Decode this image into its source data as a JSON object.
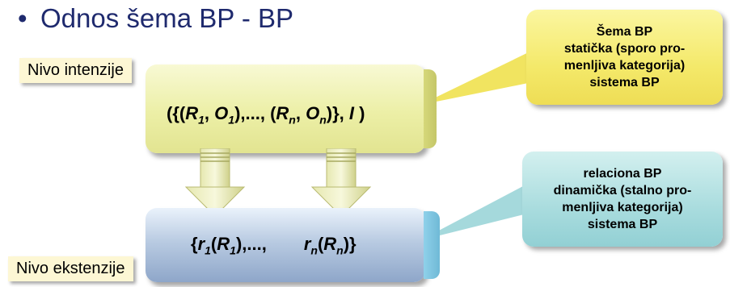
{
  "title": "Odnos šema BP - BP",
  "bullet": "•",
  "labels": {
    "intension": "Nivo intenzije",
    "extension": "Nivo ekstenzije"
  },
  "formula_top": {
    "open": "({(",
    "R1": "R",
    "R1_sub": "1",
    "comma1": ", ",
    "O1": "O",
    "O1_sub": "1",
    "mid": "),..., (",
    "Rn": "R",
    "Rn_sub": "n",
    "comma2": ", ",
    "On": "O",
    "On_sub": "n",
    "close": ")}, ",
    "I": "I",
    "end": " )"
  },
  "formula_bottom": {
    "open": "{",
    "r1": "r",
    "r1_sub": "1",
    "paren1": "(",
    "R1": "R",
    "R1_sub": "1",
    "mid": "),...,",
    "rn": "r",
    "rn_sub": "n",
    "paren2": "(",
    "Rn": "R",
    "Rn_sub": "n",
    "close": ")}"
  },
  "callouts": {
    "schema": [
      "Šema BP",
      "statička (sporo pro-",
      "menljiva kategorija)",
      "sistema BP"
    ],
    "relational": [
      "relaciona BP",
      "dinamička (stalno pro-",
      "menljiva kategorija)",
      "sistema BP"
    ]
  },
  "colors": {
    "title": "#1f2a6e",
    "schema_callout": "#f4e96a",
    "relational_callout": "#a9dcde",
    "top_slab": "#ecefa6",
    "bottom_slab": "#b9cbe2"
  }
}
